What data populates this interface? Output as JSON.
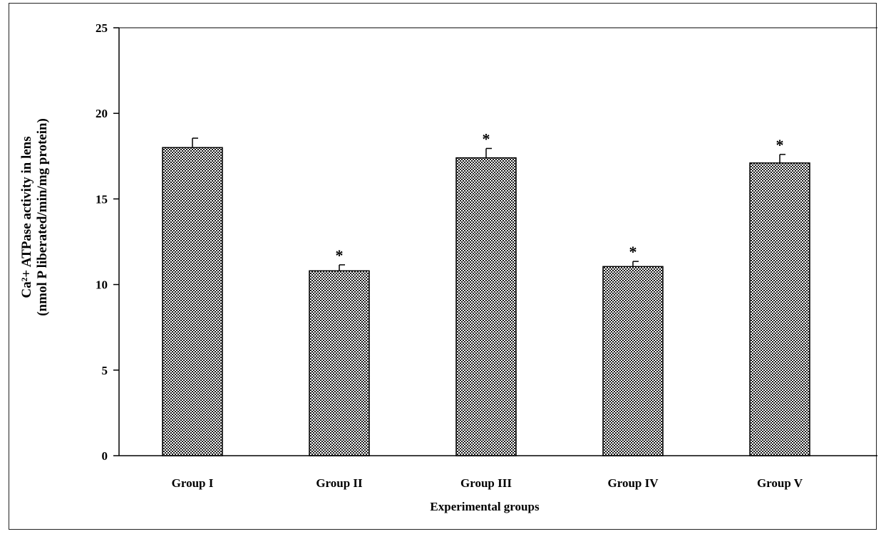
{
  "chart_data": {
    "type": "bar",
    "title": "",
    "xlabel": "Experimental groups",
    "ylabel_line1": "Ca²+ ATPase activity in lens",
    "ylabel_line2": "(nmol P liberated/min/mg protein)",
    "categories": [
      "Group I",
      "Group II",
      "Group III",
      "Group IV",
      "Group V"
    ],
    "values": [
      18.0,
      10.8,
      17.4,
      11.05,
      17.1
    ],
    "errors": [
      0.55,
      0.35,
      0.55,
      0.3,
      0.5
    ],
    "significance": [
      "",
      "*",
      "*",
      "*",
      "*"
    ],
    "ylim": [
      0,
      25
    ],
    "yticks": [
      0,
      5,
      10,
      15,
      20,
      25
    ],
    "grid": false,
    "legend": "none",
    "bar_pattern": "checkered",
    "bar_color": "#000000"
  }
}
